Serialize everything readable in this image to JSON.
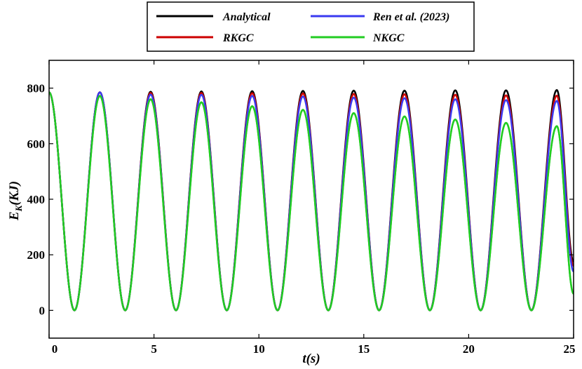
{
  "chart_data": {
    "type": "line",
    "xlabel": "t(s)",
    "ylabel_main": "E",
    "ylabel_sub": "K",
    "ylabel_unit": "(KJ)",
    "xlim": [
      0,
      25
    ],
    "ylim": [
      -100,
      900
    ],
    "x_ticks": [
      0,
      5,
      10,
      15,
      20,
      25
    ],
    "x_tick_labels": [
      "0",
      "5",
      "10",
      "15",
      "20",
      "25"
    ],
    "y_ticks": [
      0,
      200,
      400,
      600,
      800
    ],
    "y_tick_labels": [
      "0",
      "200",
      "400",
      "600",
      "800"
    ],
    "grid": false,
    "legend_position": "top-center",
    "x": [
      0.0,
      1.21,
      2.42,
      3.63,
      4.84,
      6.05,
      7.26,
      8.47,
      9.68,
      10.89,
      12.1,
      13.31,
      14.52,
      15.73,
      16.94,
      18.15,
      19.36,
      20.57,
      21.78,
      22.99,
      24.2,
      25.0
    ],
    "series": [
      {
        "name": "Analytical",
        "color": "#000000",
        "values": [
          785,
          0,
          785,
          0,
          787,
          0,
          788,
          0,
          789,
          0,
          790,
          0,
          791,
          0,
          791,
          0,
          792,
          0,
          792,
          0,
          793,
          175
        ]
      },
      {
        "name": "Ren et al. (2023)",
        "color": "#3a3af0",
        "values": [
          785,
          0,
          785,
          0,
          777,
          0,
          776,
          0,
          772,
          0,
          770,
          0,
          766,
          0,
          764,
          0,
          760,
          0,
          757,
          0,
          754,
          140
        ]
      },
      {
        "name": "RKGC",
        "color": "#cc0000",
        "values": [
          785,
          0,
          785,
          0,
          783,
          0,
          783,
          0,
          782,
          0,
          781,
          0,
          779,
          0,
          778,
          0,
          776,
          0,
          774,
          0,
          773,
          160
        ]
      },
      {
        "name": "NKGC",
        "color": "#22cc22",
        "values": [
          785,
          0,
          772,
          0,
          760,
          0,
          749,
          0,
          735,
          0,
          722,
          0,
          710,
          0,
          698,
          0,
          687,
          0,
          675,
          0,
          663,
          60
        ]
      }
    ]
  }
}
